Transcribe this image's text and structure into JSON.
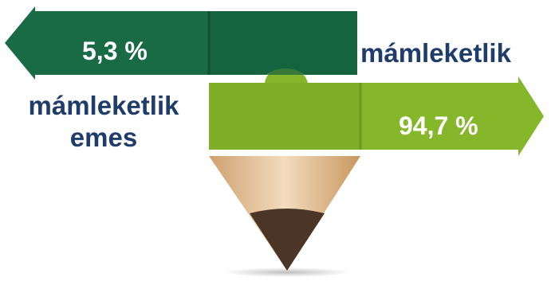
{
  "items": [
    {
      "value_label": "5,3 %",
      "category_label": "mámleketlik\nemes",
      "value": 5.3,
      "direction": "left",
      "color": "#196b45"
    },
    {
      "value_label": "94,7 %",
      "category_label": "mámleketlik",
      "value": 94.7,
      "direction": "right",
      "color": "#86b62a"
    }
  ],
  "colors": {
    "dark_green": "#196b45",
    "light_green": "#86b62a",
    "pencil_wood": "#e9c79c",
    "pencil_lead": "#4a3526",
    "label_text": "#1f3c6a"
  }
}
